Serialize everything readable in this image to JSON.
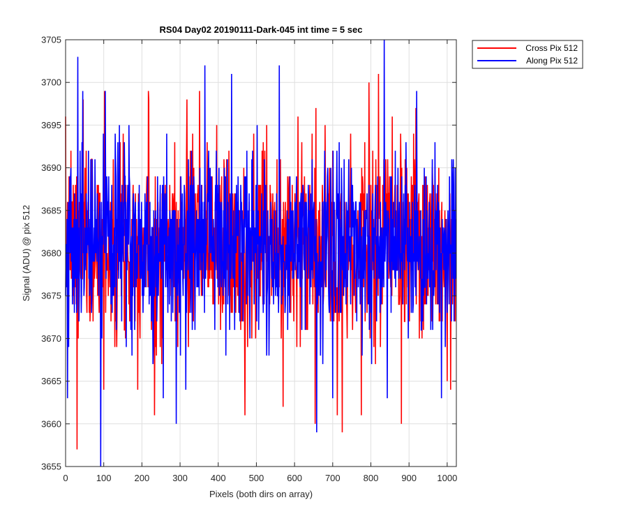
{
  "chart_data": {
    "type": "line",
    "title": "RS04 Day02 20190111-Dark-045 int time = 5 sec",
    "xlabel": "Pixels (both dirs on array)",
    "ylabel": "Signal (ADU) @ pix 512",
    "xlim": [
      0,
      1024
    ],
    "ylim": [
      3655,
      3705
    ],
    "xticks": [
      0,
      100,
      200,
      300,
      400,
      500,
      600,
      700,
      800,
      900,
      1000
    ],
    "yticks": [
      3655,
      3660,
      3665,
      3670,
      3675,
      3680,
      3685,
      3690,
      3695,
      3700,
      3705
    ],
    "grid": true,
    "legend_position": "outside-top-right",
    "series": [
      {
        "name": "Cross Pix 512",
        "color": "#ff0000",
        "mean": 3681,
        "std": 5.5,
        "seed": 7,
        "sample_count": 1024,
        "extremes": [
          {
            "x": 30,
            "y": 3657
          },
          {
            "x": 100,
            "y": 3664
          },
          {
            "x": 102,
            "y": 3699
          },
          {
            "x": 218,
            "y": 3698
          },
          {
            "x": 233,
            "y": 3661
          },
          {
            "x": 318,
            "y": 3698
          },
          {
            "x": 470,
            "y": 3661
          },
          {
            "x": 570,
            "y": 3662
          },
          {
            "x": 654,
            "y": 3660
          },
          {
            "x": 725,
            "y": 3659
          },
          {
            "x": 775,
            "y": 3661
          },
          {
            "x": 795,
            "y": 3700
          },
          {
            "x": 820,
            "y": 3701
          },
          {
            "x": 880,
            "y": 3660
          },
          {
            "x": 1000,
            "y": 3665
          }
        ]
      },
      {
        "name": "Along Pix 512",
        "color": "#0000ff",
        "mean": 3681,
        "std": 5.5,
        "seed": 19,
        "sample_count": 1024,
        "extremes": [
          {
            "x": 5,
            "y": 3663
          },
          {
            "x": 32,
            "y": 3703
          },
          {
            "x": 45,
            "y": 3699
          },
          {
            "x": 92,
            "y": 3655
          },
          {
            "x": 104,
            "y": 3699
          },
          {
            "x": 256,
            "y": 3663
          },
          {
            "x": 290,
            "y": 3660
          },
          {
            "x": 365,
            "y": 3702
          },
          {
            "x": 435,
            "y": 3701
          },
          {
            "x": 560,
            "y": 3702
          },
          {
            "x": 658,
            "y": 3659
          },
          {
            "x": 700,
            "y": 3663
          },
          {
            "x": 835,
            "y": 3705
          },
          {
            "x": 843,
            "y": 3663
          },
          {
            "x": 985,
            "y": 3663
          }
        ]
      }
    ]
  }
}
